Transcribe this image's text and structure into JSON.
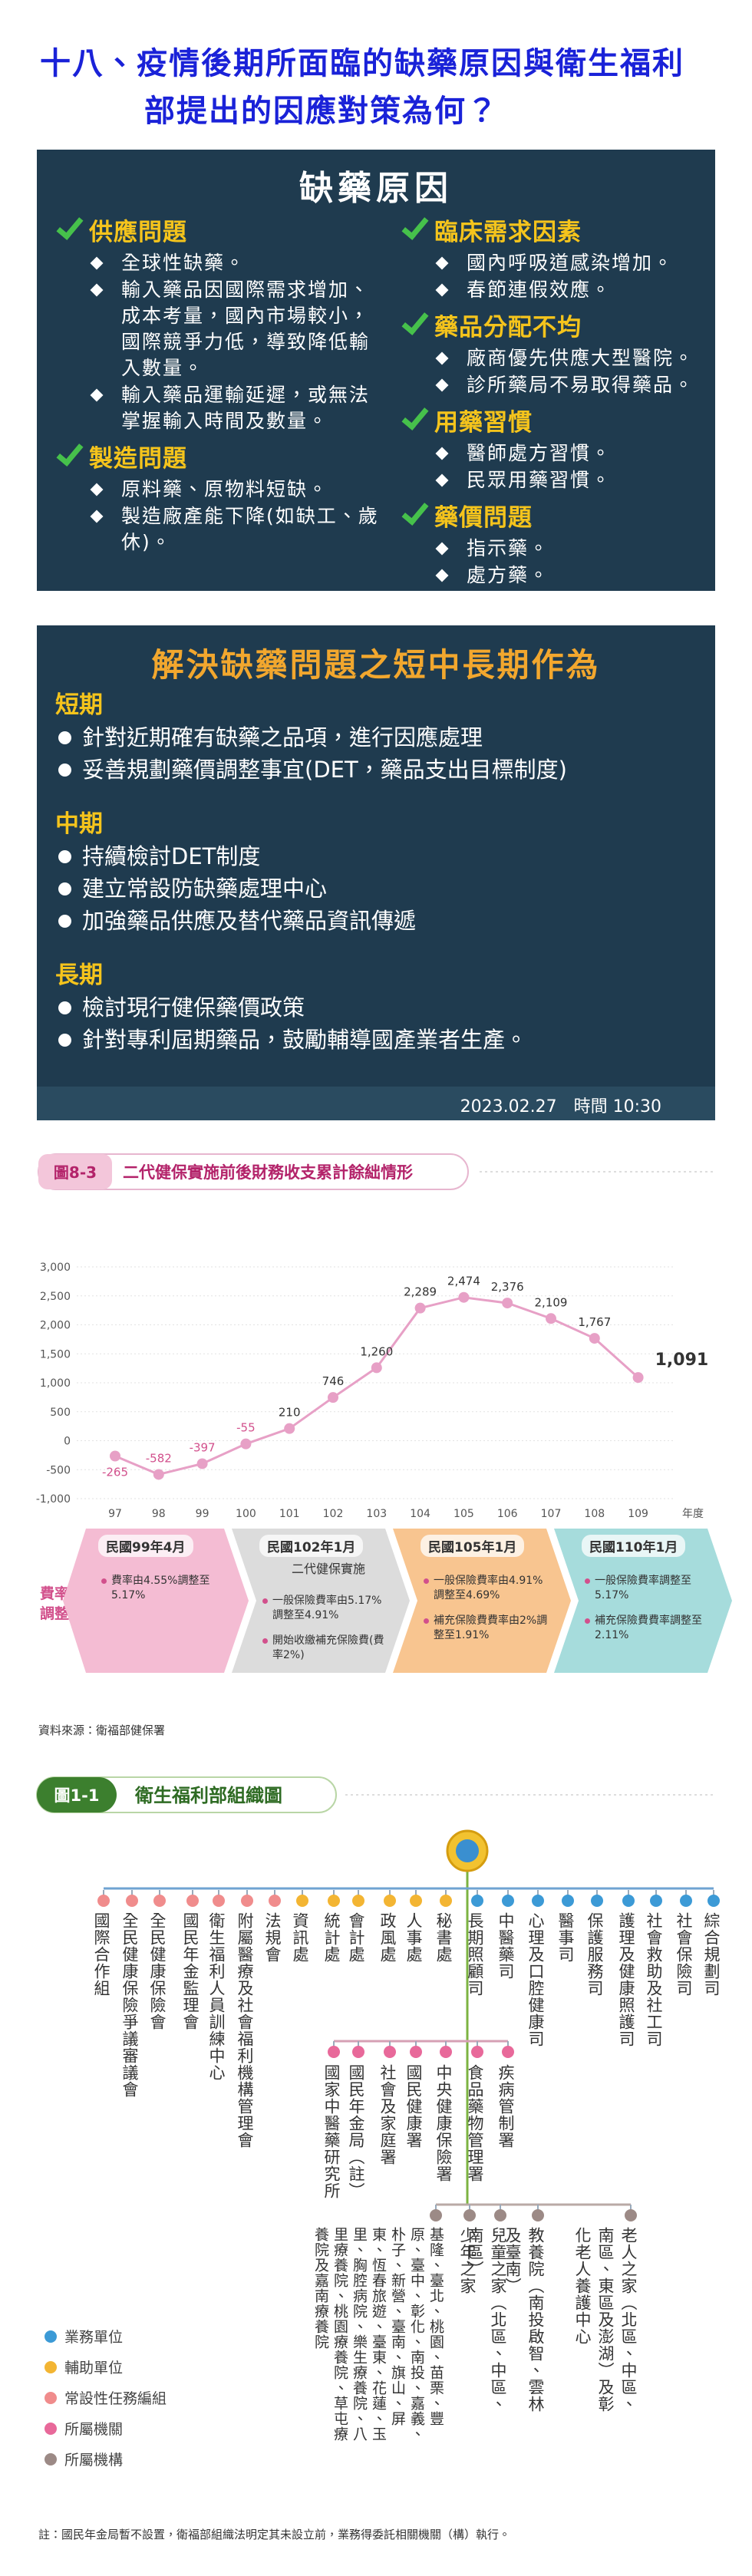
{
  "title": [
    "十八、疫情後期所面臨的缺藥原因與衛生福利",
    "部提出的因應對策為何？"
  ],
  "slide1": {
    "title": "缺藥原因",
    "left": [
      {
        "heading": "供應問題",
        "items": [
          "全球性缺藥。",
          "輸入藥品因國際需求增加、成本考量，國內市場較小，國際競爭力低，導致降低輸入數量。",
          "輸入藥品運輸延遲，或無法掌握輸入時間及數量。"
        ]
      },
      {
        "heading": "製造問題",
        "items": [
          "原料藥、原物料短缺。",
          "製造廠產能下降(如缺工、歲休)。"
        ]
      }
    ],
    "right": [
      {
        "heading": "臨床需求因素",
        "items": [
          "國內呼吸道感染增加。",
          "春節連假效應。"
        ]
      },
      {
        "heading": "藥品分配不均",
        "items": [
          "廠商優先供應大型醫院。",
          "診所藥局不易取得藥品。"
        ]
      },
      {
        "heading": "用藥習慣",
        "items": [
          "醫師處方習慣。",
          "民眾用藥習慣。"
        ]
      },
      {
        "heading": "藥價問題",
        "items": [
          "指示藥。",
          "處方藥。"
        ]
      }
    ]
  },
  "slide2": {
    "title": "解決缺藥問題之短中長期作為",
    "sections": [
      {
        "heading": "短期",
        "items": [
          "針對近期確有缺藥之品項，進行因應處理",
          "妥善規劃藥價調整事宜(DET，藥品支出目標制度)"
        ]
      },
      {
        "heading": "中期",
        "items": [
          "持續檢討DET制度",
          "建立常設防缺藥處理中心",
          "加強藥品供應及替代藥品資訊傳遞"
        ]
      },
      {
        "heading": "長期",
        "items": [
          "檢討現行健保藥價政策",
          "針對專利屆期藥品，鼓勵輔導國產業者生產。"
        ]
      }
    ],
    "footer": "2023.02.27　時間 10:30"
  },
  "chart_figure": {
    "label": "圖8-3",
    "title": "二代健保實施前後財務收支累計餘絀情形"
  },
  "chart": {
    "type": "line",
    "x_label": "年度",
    "categories": [
      "97",
      "98",
      "99",
      "100",
      "101",
      "102",
      "103",
      "104",
      "105",
      "106",
      "107",
      "108",
      "109"
    ],
    "values": [
      -265,
      -582,
      -397,
      -55,
      210,
      746,
      1260,
      2289,
      2474,
      2376,
      2109,
      1767,
      1091
    ],
    "value_labels": [
      "-265",
      "-582",
      "-397",
      "-55",
      "210",
      "746",
      "1,260",
      "2,289",
      "2,474",
      "2,376",
      "2,109",
      "1,767",
      "1,091"
    ],
    "color": "#e7a0c6",
    "ylim": [
      -1000,
      3000
    ],
    "yticks": [
      {
        "value": 3000,
        "label": "3,000"
      },
      {
        "value": 2500,
        "label": "2,500"
      },
      {
        "value": 2000,
        "label": "2,000"
      },
      {
        "value": 1500,
        "label": "1,500"
      },
      {
        "value": 1000,
        "label": "1,000"
      },
      500,
      0,
      -500,
      {
        "value": -1000,
        "label": "-1,000"
      }
    ],
    "grid": true
  },
  "rate_changes": {
    "label": [
      "費率",
      "調整情形"
    ],
    "stages": [
      {
        "date": "民國99年4月",
        "color": "#f4bcd3",
        "items": [
          "費率由4.55%調整至5.17%"
        ]
      },
      {
        "date": "民國102年1月",
        "subtitle": "二代健保實施",
        "color": "#dcdcdc",
        "items": [
          "一般保險費率由5.17%調整至4.91%",
          "開始收繳補充保險費(費率2%)"
        ]
      },
      {
        "date": "民國105年1月",
        "color": "#f8c590",
        "items": [
          "一般保險費率由4.91%調整至4.69%",
          "補充保險費費率由2%調整至1.91%"
        ]
      },
      {
        "date": "民國110年1月",
        "color": "#a6dcdc",
        "items": [
          "一般保險費率調整至5.17%",
          "補充保險費費率調整至2.11%"
        ]
      }
    ]
  },
  "source": "資料來源：衛福部健保署",
  "org_chart": {
    "label": "圖1-1",
    "title": "衛生福利部組織圖",
    "units": [
      {
        "name": "國際合作組",
        "color": "#f08c8c"
      },
      {
        "name": "全民健康保險爭議審議會",
        "color": "#f08c8c"
      },
      {
        "name": "全民健康保險會",
        "color": "#f08c8c"
      },
      {
        "name": "國民年金監理會",
        "color": "#f08c8c"
      },
      {
        "name": "衛生福利人員訓練中心",
        "color": "#f08c8c"
      },
      {
        "name": "附屬醫療及社會福利機構管理會",
        "color": "#f08c8c"
      },
      {
        "name": "法規會",
        "color": "#f08c8c"
      },
      {
        "name": "資訊處",
        "color": "#f3b533"
      },
      {
        "name": "統計處",
        "color": "#f3b533"
      },
      {
        "name": "會計處",
        "color": "#f3b533"
      },
      {
        "name": "政風處",
        "color": "#f3b533"
      },
      {
        "name": "人事處",
        "color": "#f3b533"
      },
      {
        "name": "秘書處",
        "color": "#f3b533"
      },
      {
        "name": "長期照顧司",
        "color": "#3c9ad6"
      },
      {
        "name": "中醫藥司",
        "color": "#3c9ad6"
      },
      {
        "name": "心理及口腔健康司",
        "color": "#3c9ad6"
      },
      {
        "name": "醫事司",
        "color": "#3c9ad6"
      },
      {
        "name": "保護服務司",
        "color": "#3c9ad6"
      },
      {
        "name": "護理及健康照護司",
        "color": "#3c9ad6"
      },
      {
        "name": "社會救助及社工司",
        "color": "#3c9ad6"
      },
      {
        "name": "社會保險司",
        "color": "#3c9ad6"
      },
      {
        "name": "綜合規劃司",
        "color": "#3c9ad6"
      }
    ],
    "agencies": [
      {
        "name": "國家中醫藥研究所",
        "color": "#e8699a"
      },
      {
        "name": "國民年金局（註）",
        "color": "#e8699a"
      },
      {
        "name": "社會及家庭署",
        "color": "#e8699a"
      },
      {
        "name": "國民健康署",
        "color": "#e8699a"
      },
      {
        "name": "中央健康保險署",
        "color": "#e8699a"
      },
      {
        "name": "食品藥物管理署",
        "color": "#e8699a"
      },
      {
        "name": "疾病管制署",
        "color": "#e8699a"
      }
    ],
    "institutions": [
      {
        "name": "基隆、臺北、桃園、苗栗、豐原、臺中、彰化、南投、嘉義、朴子、新營、臺南、旗山、屏東、恆春旅遊、臺東、花蓮、玉里、胸腔病院、樂生療養院、八里療養院、桃園療養院、草屯療養院及嘉南療養院",
        "color": "#9c8a86"
      },
      {
        "name": "少年之家",
        "color": "#9c8a86"
      },
      {
        "name": "兒童之家（北區、中區、南區）",
        "color": "#9c8a86"
      },
      {
        "name": "教養院（南投啟智、雲林及臺南）",
        "color": "#9c8a86"
      },
      {
        "name": "老人之家（北區、中區、南區、東區及澎湖）及彰化老人養護中心",
        "color": "#9c8a86"
      }
    ],
    "legend": [
      {
        "name": "業務單位",
        "color": "#3c9ad6"
      },
      {
        "name": "輔助單位",
        "color": "#f3b533"
      },
      {
        "name": "常設性任務編組",
        "color": "#f08c8c"
      },
      {
        "name": "所屬機關",
        "color": "#e8699a"
      },
      {
        "name": "所屬機構",
        "color": "#9c8a86"
      }
    ],
    "note": "註：國民年金局暫不設置，衛福部組織法明定其未設立前，業務得委託相關機關（構）執行。"
  }
}
